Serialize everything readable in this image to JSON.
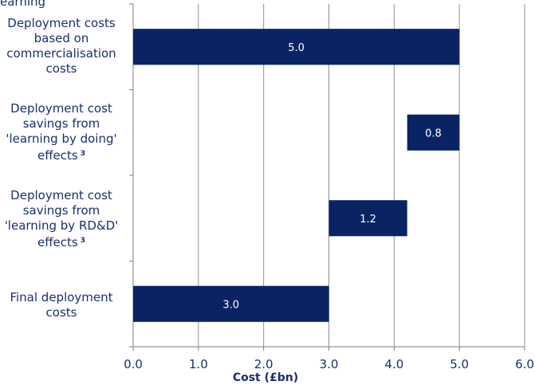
{
  "header_fragment": "earning",
  "chart_data": {
    "type": "bar",
    "orientation": "horizontal",
    "stacked_waterfall": true,
    "categories": [
      "Deployment costs based on commercialisation costs",
      "Deployment cost savings from 'learning by doing' effects",
      "Deployment cost savings from 'learning by RD&D' effects",
      "Final deployment costs"
    ],
    "category_footnotes": [
      "",
      "3",
      "3",
      ""
    ],
    "bars": [
      {
        "start": 0.0,
        "end": 5.0,
        "label": "5.0"
      },
      {
        "start": 4.2,
        "end": 5.0,
        "label": "0.8"
      },
      {
        "start": 3.0,
        "end": 4.2,
        "label": "1.2"
      },
      {
        "start": 0.0,
        "end": 3.0,
        "label": "3.0"
      }
    ],
    "values": [
      5.0,
      0.8,
      1.2,
      3.0
    ],
    "xlabel": "Cost (£bn)",
    "xlim": [
      0,
      6
    ],
    "xticks": [
      "0.0",
      "1.0",
      "2.0",
      "3.0",
      "4.0",
      "5.0",
      "6.0"
    ],
    "grid": "vertical",
    "bar_color": "#0a2463",
    "text_color": "#1b2f6b"
  }
}
